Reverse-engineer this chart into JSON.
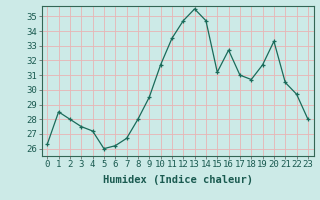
{
  "x": [
    0,
    1,
    2,
    3,
    4,
    5,
    6,
    7,
    8,
    9,
    10,
    11,
    12,
    13,
    14,
    15,
    16,
    17,
    18,
    19,
    20,
    21,
    22,
    23
  ],
  "y": [
    26.3,
    28.5,
    28.0,
    27.5,
    27.2,
    26.0,
    26.2,
    26.7,
    28.0,
    29.5,
    31.7,
    33.5,
    34.7,
    35.5,
    34.7,
    31.2,
    32.7,
    31.0,
    30.7,
    31.7,
    33.3,
    30.5,
    29.7,
    28.0
  ],
  "ylim": [
    25.5,
    35.7
  ],
  "yticks": [
    26,
    27,
    28,
    29,
    30,
    31,
    32,
    33,
    34,
    35
  ],
  "xlabel": "Humidex (Indice chaleur)",
  "line_color": "#1a6b5a",
  "marker": "+",
  "bg_color": "#cceae7",
  "grid_color": "#e8b4b4",
  "axis_fontsize": 6.5,
  "label_fontsize": 7.5
}
